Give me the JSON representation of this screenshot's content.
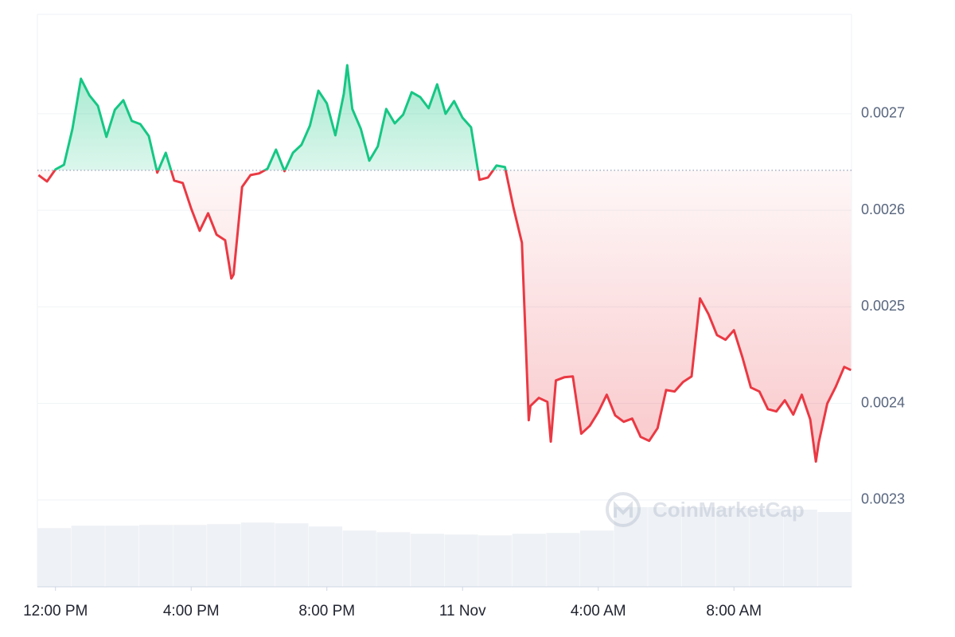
{
  "chart_data": {
    "type": "line",
    "x": [
      -30,
      -15,
      0,
      15,
      30,
      45,
      60,
      75,
      90,
      105,
      120,
      135,
      150,
      165,
      180,
      195,
      210,
      225,
      240,
      255,
      270,
      285,
      300,
      311,
      315,
      330,
      345,
      360,
      375,
      390,
      405,
      420,
      435,
      450,
      465,
      480,
      495,
      510,
      516,
      525,
      540,
      555,
      570,
      585,
      600,
      615,
      630,
      645,
      660,
      675,
      690,
      705,
      720,
      735,
      750,
      765,
      780,
      795,
      810,
      825,
      837,
      840,
      855,
      870,
      876,
      885,
      900,
      915,
      930,
      945,
      960,
      975,
      990,
      1005,
      1020,
      1035,
      1050,
      1065,
      1080,
      1095,
      1110,
      1125,
      1140,
      1155,
      1170,
      1185,
      1200,
      1215,
      1230,
      1245,
      1260,
      1275,
      1290,
      1305,
      1320,
      1335,
      1345,
      1350,
      1365,
      1380,
      1395,
      1407
    ],
    "values": [
      0.0026365,
      0.0026299,
      0.0026423,
      0.0026472,
      0.0026843,
      0.0027363,
      0.002719,
      0.0027082,
      0.0026761,
      0.0027041,
      0.002714,
      0.0026926,
      0.0026893,
      0.0026769,
      0.002639,
      0.0026596,
      0.0026308,
      0.0026283,
      0.0026019,
      0.0025788,
      0.002597,
      0.0025747,
      0.0025689,
      0.0025294,
      0.0025335,
      0.0026242,
      0.0026365,
      0.0026382,
      0.0026431,
      0.0026629,
      0.0026406,
      0.0026596,
      0.0026678,
      0.0026876,
      0.0027239,
      0.0027107,
      0.0026777,
      0.0027206,
      0.0027503,
      0.0027049,
      0.0026843,
      0.0026514,
      0.0026662,
      0.0027049,
      0.0026901,
      0.0026992,
      0.0027223,
      0.0027173,
      0.0027058,
      0.0027305,
      0.0027,
      0.0027132,
      0.0026959,
      0.002686,
      0.0026316,
      0.002634,
      0.0026464,
      0.0026448,
      0.0026027,
      0.0025664,
      0.0023826,
      0.0023974,
      0.0024057,
      0.0024016,
      0.0023604,
      0.0024238,
      0.0024271,
      0.0024279,
      0.0023686,
      0.0023768,
      0.0023909,
      0.002409,
      0.0023876,
      0.002381,
      0.0023843,
      0.0023653,
      0.0023612,
      0.0023744,
      0.0024139,
      0.0024123,
      0.0024222,
      0.0024279,
      0.0025087,
      0.0024923,
      0.0024708,
      0.0024659,
      0.0024758,
      0.0024477,
      0.0024164,
      0.0024123,
      0.0023941,
      0.0023917,
      0.0024032,
      0.0023884,
      0.002409,
      0.0023834,
      0.0023397,
      0.0023595,
      0.0023999,
      0.0024172,
      0.0024378,
      0.0024345
    ],
    "baseline": 0.0026415,
    "up_color": "#16c784",
    "down_color": "#ea3943",
    "volume": {
      "x": [
        -32,
        28,
        88,
        148,
        208,
        268,
        328,
        388,
        448,
        508,
        568,
        628,
        688,
        748,
        808,
        868,
        928,
        988,
        1048,
        1108,
        1168,
        1228,
        1288,
        1348
      ],
      "values": [
        73,
        76,
        76,
        77,
        77,
        78,
        80,
        79,
        75,
        70,
        68,
        66,
        65,
        64,
        66,
        67,
        70,
        99,
        99,
        99,
        98,
        97,
        96,
        93
      ],
      "color": "#eef1f5"
    },
    "xlim": [
      -32,
      1408
    ],
    "xticks": [
      {
        "value": 0,
        "label": "12:00 PM"
      },
      {
        "value": 240,
        "label": "4:00 PM"
      },
      {
        "value": 480,
        "label": "8:00 PM"
      },
      {
        "value": 720,
        "label": "11 Nov"
      },
      {
        "value": 960,
        "label": "4:00 AM"
      },
      {
        "value": 1200,
        "label": "8:00 AM"
      }
    ],
    "ylim": [
      0.00221,
      0.002803
    ],
    "yticks": [
      0.0023,
      0.0024,
      0.0025,
      0.0026,
      0.0027
    ],
    "grid": true,
    "watermark": "CoinMarketCap"
  }
}
